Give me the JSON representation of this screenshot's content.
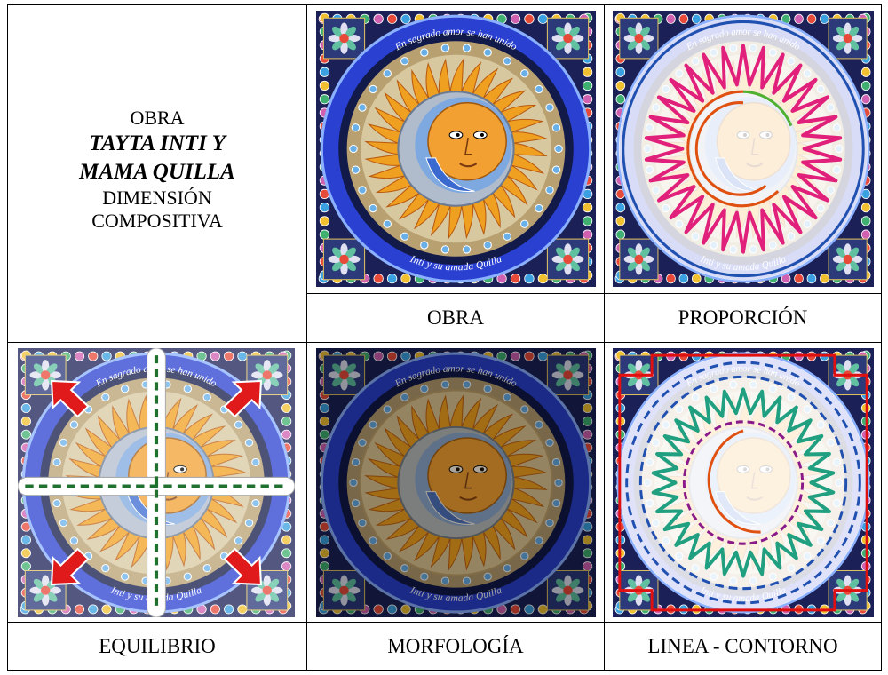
{
  "title_cell": {
    "lines": [
      "OBRA",
      "TAYTA INTI Y",
      "MAMA QUILLA",
      "DIMENSIÓN",
      "COMPOSITIVA"
    ]
  },
  "panels": [
    {
      "caption": "OBRA"
    },
    {
      "caption": "PROPORCIÓN"
    },
    {
      "caption": "EQUILIBRIO"
    },
    {
      "caption": "MORFOLOGÍA"
    },
    {
      "caption": "LINEA - CONTORNO"
    }
  ],
  "inscriptions": {
    "top": "En sagrado amor se han unido",
    "bottom": "Inti y su amada Quilla"
  }
}
